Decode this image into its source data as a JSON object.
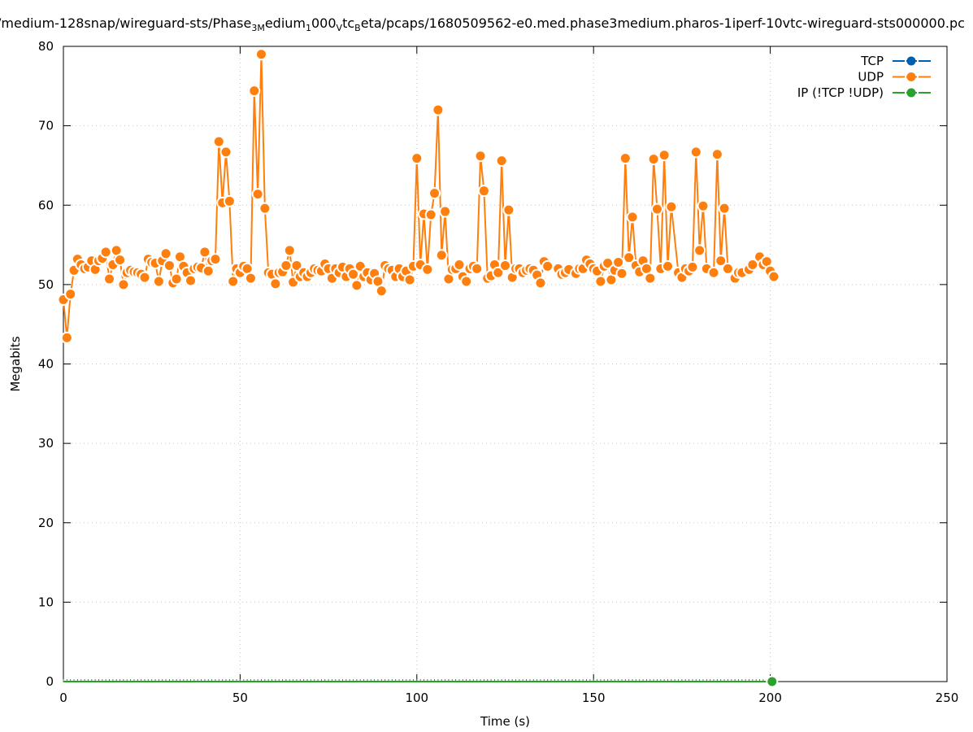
{
  "chart_data": {
    "type": "line",
    "title_segments": [
      {
        "text": "/medium-128snap/wireguard-sts/Phase"
      },
      {
        "sub": "3M"
      },
      {
        "text": "edium"
      },
      {
        "sub": "1"
      },
      {
        "text": "000"
      },
      {
        "sub": "V"
      },
      {
        "text": "tc"
      },
      {
        "sub": "B"
      },
      {
        "text": "eta/pcaps/1680509562-e0.med.phase3medium.pharos-1iperf-10vtc-wireguard-sts000000.pc"
      }
    ],
    "xlabel": "Time (s)",
    "ylabel": "Megabits",
    "xlim": [
      0,
      250
    ],
    "ylim": [
      0,
      80
    ],
    "xticks": [
      "0",
      "50",
      "100",
      "150",
      "200",
      "250"
    ],
    "yticks": [
      "0",
      "10",
      "20",
      "30",
      "40",
      "50",
      "60",
      "70",
      "80"
    ],
    "grid": true,
    "legend_position": "top-right",
    "series": [
      {
        "name": "TCP",
        "color": "#0060ad",
        "points": []
      },
      {
        "name": "UDP",
        "color": "#ff7f0e",
        "points": [
          [
            0,
            48.1
          ],
          [
            1,
            43.3
          ],
          [
            2,
            48.8
          ],
          [
            3,
            51.8
          ],
          [
            4,
            53.2
          ],
          [
            5,
            52.5
          ],
          [
            6,
            52
          ],
          [
            7,
            52.2
          ],
          [
            8,
            53
          ],
          [
            9,
            51.9
          ],
          [
            10,
            53
          ],
          [
            11,
            53.3
          ],
          [
            12,
            54.1
          ],
          [
            13,
            50.7
          ],
          [
            14,
            52.5
          ],
          [
            15,
            54.3
          ],
          [
            16,
            53.1
          ],
          [
            17,
            50
          ],
          [
            18,
            51.5
          ],
          [
            19,
            51.8
          ],
          [
            20,
            51.6
          ],
          [
            21,
            51.5
          ],
          [
            22,
            51.3
          ],
          [
            23,
            50.9
          ],
          [
            24,
            53.2
          ],
          [
            25,
            52.8
          ],
          [
            26,
            52.7
          ],
          [
            27,
            50.4
          ],
          [
            28,
            53
          ],
          [
            29,
            53.9
          ],
          [
            30,
            52.4
          ],
          [
            31,
            50.2
          ],
          [
            32,
            50.7
          ],
          [
            33,
            53.5
          ],
          [
            34,
            52.3
          ],
          [
            35,
            51.5
          ],
          [
            36,
            50.5
          ],
          [
            37,
            52
          ],
          [
            38,
            52.2
          ],
          [
            39,
            52.1
          ],
          [
            40,
            54.1
          ],
          [
            41,
            51.7
          ],
          [
            42,
            53
          ],
          [
            43,
            53.2
          ],
          [
            44,
            68
          ],
          [
            45,
            60.3
          ],
          [
            46,
            66.7
          ],
          [
            47,
            60.5
          ],
          [
            48,
            50.4
          ],
          [
            49,
            52
          ],
          [
            50,
            51.5
          ],
          [
            51,
            52.3
          ],
          [
            52,
            52
          ],
          [
            53,
            50.8
          ],
          [
            54,
            74.4
          ],
          [
            55,
            61.4
          ],
          [
            56,
            79
          ],
          [
            57,
            59.6
          ],
          [
            58,
            51.5
          ],
          [
            59,
            51.3
          ],
          [
            60,
            50.1
          ],
          [
            61,
            51.5
          ],
          [
            62,
            51.6
          ],
          [
            63,
            52.4
          ],
          [
            64,
            54.3
          ],
          [
            65,
            50.3
          ],
          [
            66,
            52.4
          ],
          [
            67,
            51
          ],
          [
            68,
            51.5
          ],
          [
            69,
            51
          ],
          [
            70,
            51.5
          ],
          [
            71,
            52
          ],
          [
            72,
            51.8
          ],
          [
            73,
            51.7
          ],
          [
            74,
            52.6
          ],
          [
            75,
            52
          ],
          [
            76,
            50.8
          ],
          [
            77,
            52
          ],
          [
            78,
            51.5
          ],
          [
            79,
            52.2
          ],
          [
            80,
            51
          ],
          [
            81,
            52
          ],
          [
            82,
            51.3
          ],
          [
            83,
            49.9
          ],
          [
            84,
            52.3
          ],
          [
            85,
            51
          ],
          [
            86,
            51.5
          ],
          [
            87,
            50.6
          ],
          [
            88,
            51.4
          ],
          [
            89,
            50.4
          ],
          [
            90,
            49.2
          ],
          [
            91,
            52.4
          ],
          [
            92,
            52
          ],
          [
            93,
            51.8
          ],
          [
            94,
            51
          ],
          [
            95,
            52
          ],
          [
            96,
            51
          ],
          [
            97,
            51.7
          ],
          [
            98,
            50.6
          ],
          [
            99,
            52.3
          ],
          [
            100,
            65.9
          ],
          [
            101,
            52.5
          ],
          [
            102,
            58.9
          ],
          [
            103,
            51.9
          ],
          [
            104,
            58.8
          ],
          [
            105,
            61.5
          ],
          [
            106,
            72
          ],
          [
            107,
            53.7
          ],
          [
            108,
            59.2
          ],
          [
            109,
            50.7
          ],
          [
            110,
            51.9
          ],
          [
            111,
            52
          ],
          [
            112,
            52.5
          ],
          [
            113,
            51
          ],
          [
            114,
            50.4
          ],
          [
            115,
            52
          ],
          [
            116,
            52.3
          ],
          [
            117,
            52
          ],
          [
            118,
            66.2
          ],
          [
            119,
            61.8
          ],
          [
            120,
            50.8
          ],
          [
            121,
            51.1
          ],
          [
            122,
            52.5
          ],
          [
            123,
            51.5
          ],
          [
            124,
            65.6
          ],
          [
            125,
            52.4
          ],
          [
            126,
            59.4
          ],
          [
            127,
            50.9
          ],
          [
            128,
            52
          ],
          [
            129,
            52
          ],
          [
            130,
            51.5
          ],
          [
            131,
            51.8
          ],
          [
            132,
            52
          ],
          [
            133,
            51.8
          ],
          [
            134,
            51.2
          ],
          [
            135,
            50.2
          ],
          [
            136,
            52.9
          ],
          [
            137,
            52.3
          ],
          [
            140,
            52
          ],
          [
            141,
            51.3
          ],
          [
            142,
            51.5
          ],
          [
            143,
            51.9
          ],
          [
            145,
            51.4
          ],
          [
            146,
            52
          ],
          [
            147,
            52
          ],
          [
            148,
            53.1
          ],
          [
            149,
            52.6
          ],
          [
            150,
            52
          ],
          [
            151,
            51.7
          ],
          [
            152,
            50.4
          ],
          [
            153,
            52.3
          ],
          [
            154,
            52.7
          ],
          [
            155,
            50.6
          ],
          [
            156,
            51.8
          ],
          [
            157,
            52.8
          ],
          [
            158,
            51.4
          ],
          [
            159,
            65.9
          ],
          [
            160,
            53.4
          ],
          [
            161,
            58.5
          ],
          [
            162,
            52.4
          ],
          [
            163,
            51.6
          ],
          [
            164,
            53
          ],
          [
            165,
            52
          ],
          [
            166,
            50.8
          ],
          [
            167,
            65.8
          ],
          [
            168,
            59.5
          ],
          [
            169,
            52
          ],
          [
            170,
            66.3
          ],
          [
            171,
            52.3
          ],
          [
            172,
            59.8
          ],
          [
            174,
            51.5
          ],
          [
            175,
            50.9
          ],
          [
            176,
            52
          ],
          [
            177,
            51.7
          ],
          [
            178,
            52.2
          ],
          [
            179,
            66.7
          ],
          [
            180,
            54.3
          ],
          [
            181,
            59.9
          ],
          [
            182,
            52
          ],
          [
            184,
            51.5
          ],
          [
            185,
            66.4
          ],
          [
            186,
            53
          ],
          [
            187,
            59.6
          ],
          [
            188,
            52
          ],
          [
            190,
            50.8
          ],
          [
            191,
            51.5
          ],
          [
            192,
            51.5
          ],
          [
            194,
            51.9
          ],
          [
            195,
            52.5
          ],
          [
            197,
            53.5
          ],
          [
            198,
            52.5
          ],
          [
            199,
            52.9
          ],
          [
            200,
            51.7
          ],
          [
            201,
            51
          ]
        ]
      },
      {
        "name": "IP (!TCP  !UDP)",
        "color": "#2ca02c",
        "points": [
          [
            0,
            0
          ],
          [
            200.5,
            0
          ]
        ]
      }
    ]
  }
}
